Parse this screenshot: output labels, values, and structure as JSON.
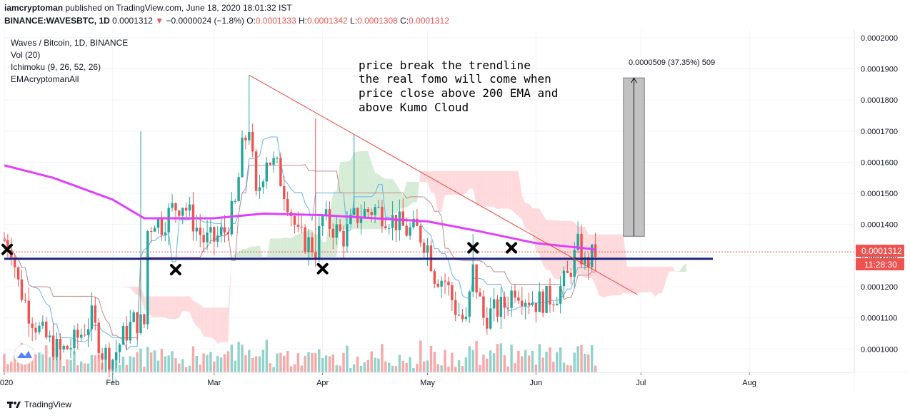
{
  "header": {
    "author": "iamcryptoman",
    "published": "published on TradingView.com, June 18, 2020 18:01:32 IST",
    "symbol": "BINANCE:WAVESBTC, 1D",
    "last": "0.0001312",
    "change_arrow": "▼",
    "change": "−0.0000024 (−1.8%)",
    "open_label": "O:",
    "open": "0.0001333",
    "high_label": "H:",
    "high": "0.0001342",
    "low_label": "L:",
    "low": "0.0001308",
    "close_label": "C:",
    "close": "0.0001312"
  },
  "legend": {
    "title": "Waves / Bitcoin, 1D, BINANCE",
    "indicators": [
      "Vol (20)",
      "Ichimoku (9, 26, 52, 26)",
      "EMAcryptomanAll"
    ]
  },
  "annotation": {
    "lines": [
      "price break the trendline",
      "the real fomo will come when",
      "price close above 200 EMA and",
      "above Kumo Cloud"
    ]
  },
  "measure_label": "0.0000509 (37.35%) 509",
  "price_label": "0.0001312",
  "countdown_label": "11:28:30",
  "footer": {
    "brand": "TradingView"
  },
  "colors": {
    "up": "#26a69a",
    "down": "#ef5350",
    "ema": "#e040fb",
    "support": "#1a237e",
    "trendline": "#f44336",
    "tenkan": "#64b5f6",
    "kijun": "#c48b8b",
    "cloud_bull": "#c8e6c9",
    "cloud_bear": "#ffcdd2"
  },
  "chart_data": {
    "type": "candlestick",
    "y_axis": {
      "range": [
        9.25e-05,
        0.0002025
      ],
      "ticks": [
        "0.0001000",
        "0.0001100",
        "0.0001200",
        "0.0001300",
        "0.0001400",
        "0.0001500",
        "0.0001600",
        "0.0001700",
        "0.0001800",
        "0.0001900",
        "0.0002000"
      ],
      "tick_values": [
        0.0001,
        0.00011,
        0.00012,
        0.00013,
        0.00014,
        0.00015,
        0.00016,
        0.00017,
        0.00018,
        0.00019,
        0.0002
      ]
    },
    "x_axis": {
      "range": [
        "2020-01-01",
        "2020-08-31"
      ],
      "labels": [
        {
          "date": "2020-01-01",
          "text": "2020"
        },
        {
          "date": "2020-02-01",
          "text": "Feb"
        },
        {
          "date": "2020-03-01",
          "text": "Mar"
        },
        {
          "date": "2020-04-01",
          "text": "Apr"
        },
        {
          "date": "2020-05-01",
          "text": "May"
        },
        {
          "date": "2020-06-01",
          "text": "Jun"
        },
        {
          "date": "2020-07-01",
          "text": "Jul"
        },
        {
          "date": "2020-08-01",
          "text": "Aug"
        }
      ]
    },
    "close_path": [
      {
        "date": "2020-01-01",
        "close": 0.000135
      },
      {
        "date": "2020-01-03",
        "close": 0.000133
      },
      {
        "date": "2020-01-05",
        "close": 0.000121
      },
      {
        "date": "2020-01-08",
        "close": 0.000112
      },
      {
        "date": "2020-01-11",
        "close": 0.000106
      },
      {
        "date": "2020-01-14",
        "close": 0.000102
      },
      {
        "date": "2020-01-17",
        "close": 9.9e-05
      },
      {
        "date": "2020-01-20",
        "close": 0.000101
      },
      {
        "date": "2020-01-23",
        "close": 0.000105
      },
      {
        "date": "2020-01-26",
        "close": 0.00011
      },
      {
        "date": "2020-01-29",
        "close": 9.9e-05
      },
      {
        "date": "2020-02-01",
        "close": 9.7e-05
      },
      {
        "date": "2020-02-04",
        "close": 0.000104
      },
      {
        "date": "2020-02-07",
        "close": 0.000109
      },
      {
        "date": "2020-02-10",
        "close": 0.000108
      },
      {
        "date": "2020-02-11",
        "close": 0.000138
      },
      {
        "date": "2020-02-13",
        "close": 0.000142
      },
      {
        "date": "2020-02-15",
        "close": 0.00014
      },
      {
        "date": "2020-02-18",
        "close": 0.000145
      },
      {
        "date": "2020-02-21",
        "close": 0.000147
      },
      {
        "date": "2020-02-24",
        "close": 0.000141
      },
      {
        "date": "2020-02-27",
        "close": 0.000135
      },
      {
        "date": "2020-03-01",
        "close": 0.000135
      },
      {
        "date": "2020-03-04",
        "close": 0.000138
      },
      {
        "date": "2020-03-07",
        "close": 0.000146
      },
      {
        "date": "2020-03-09",
        "close": 0.000164
      },
      {
        "date": "2020-03-11",
        "close": 0.000172
      },
      {
        "date": "2020-03-13",
        "close": 0.000148
      },
      {
        "date": "2020-03-16",
        "close": 0.000162
      },
      {
        "date": "2020-03-19",
        "close": 0.000158
      },
      {
        "date": "2020-03-22",
        "close": 0.000148
      },
      {
        "date": "2020-03-25",
        "close": 0.000136
      },
      {
        "date": "2020-03-28",
        "close": 0.000134
      },
      {
        "date": "2020-03-30",
        "close": 0.000132
      },
      {
        "date": "2020-04-01",
        "close": 0.000142
      },
      {
        "date": "2020-04-04",
        "close": 0.000139
      },
      {
        "date": "2020-04-07",
        "close": 0.000136
      },
      {
        "date": "2020-04-10",
        "close": 0.000142
      },
      {
        "date": "2020-04-13",
        "close": 0.000144
      },
      {
        "date": "2020-04-16",
        "close": 0.000145
      },
      {
        "date": "2020-04-19",
        "close": 0.000143
      },
      {
        "date": "2020-04-22",
        "close": 0.000141
      },
      {
        "date": "2020-04-25",
        "close": 0.000138
      },
      {
        "date": "2020-04-28",
        "close": 0.000138
      },
      {
        "date": "2020-05-01",
        "close": 0.000133
      },
      {
        "date": "2020-05-03",
        "close": 0.000124
      },
      {
        "date": "2020-05-06",
        "close": 0.000122
      },
      {
        "date": "2020-05-09",
        "close": 0.000113
      },
      {
        "date": "2020-05-12",
        "close": 0.000108
      },
      {
        "date": "2020-05-14",
        "close": 0.000125
      },
      {
        "date": "2020-05-17",
        "close": 0.00011
      },
      {
        "date": "2020-05-20",
        "close": 0.000112
      },
      {
        "date": "2020-05-23",
        "close": 0.000114
      },
      {
        "date": "2020-05-26",
        "close": 0.00012
      },
      {
        "date": "2020-05-29",
        "close": 0.000117
      },
      {
        "date": "2020-06-01",
        "close": 0.000115
      },
      {
        "date": "2020-06-04",
        "close": 0.000116
      },
      {
        "date": "2020-06-07",
        "close": 0.000118
      },
      {
        "date": "2020-06-10",
        "close": 0.000123
      },
      {
        "date": "2020-06-13",
        "close": 0.000133
      },
      {
        "date": "2020-06-15",
        "close": 0.000127
      },
      {
        "date": "2020-06-18",
        "close": 0.0001312
      }
    ],
    "ema": [
      {
        "date": "2020-01-01",
        "value": 0.000159
      },
      {
        "date": "2020-01-15",
        "value": 0.000155
      },
      {
        "date": "2020-02-01",
        "value": 0.000148
      },
      {
        "date": "2020-02-10",
        "value": 0.000142
      },
      {
        "date": "2020-03-01",
        "value": 0.000142
      },
      {
        "date": "2020-03-15",
        "value": 0.0001435
      },
      {
        "date": "2020-04-01",
        "value": 0.000143
      },
      {
        "date": "2020-05-01",
        "value": 0.000141
      },
      {
        "date": "2020-05-15",
        "value": 0.000138
      },
      {
        "date": "2020-06-01",
        "value": 0.000134
      },
      {
        "date": "2020-06-18",
        "value": 0.000132
      }
    ],
    "trendline": [
      {
        "date": "2020-03-11",
        "value": 0.000188
      },
      {
        "date": "2020-06-30",
        "value": 0.0001175
      }
    ],
    "support_level": 0.000129,
    "measure": {
      "start_date": "2020-06-26",
      "end_date": "2020-07-02",
      "low": 0.0001362,
      "high": 0.0001871
    },
    "markers": [
      {
        "date": "2020-01-01",
        "value": 0.000132
      },
      {
        "date": "2020-02-19",
        "value": 0.0001255
      },
      {
        "date": "2020-04-01",
        "value": 0.0001258
      },
      {
        "date": "2020-05-14",
        "value": 0.0001325
      },
      {
        "date": "2020-05-25",
        "value": 0.0001325
      }
    ]
  }
}
